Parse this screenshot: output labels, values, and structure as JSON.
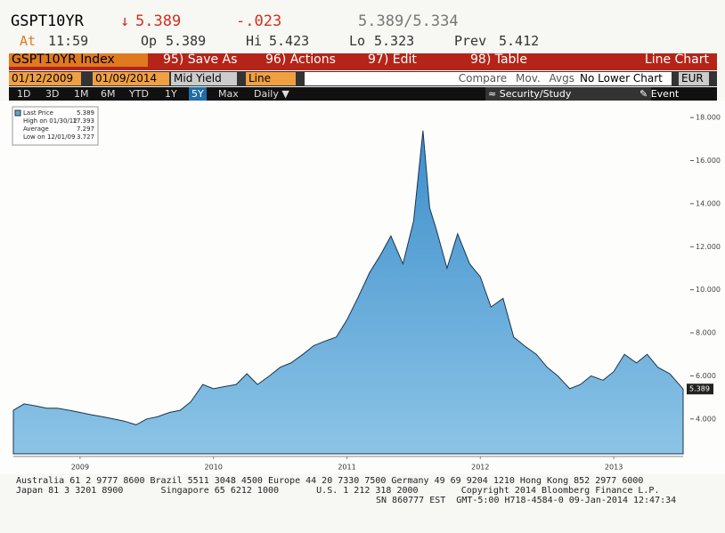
{
  "header": {
    "ticker": "GSPT10YR",
    "change_arrow": "↓",
    "price": "5.389",
    "change": "-.023",
    "bid_ask": "5.389/5.334",
    "time_label": "At",
    "time": "11:59",
    "open_label": "Op",
    "open": "5.389",
    "high_label": "Hi",
    "high": "5.423",
    "low_label": "Lo",
    "low": "5.323",
    "prev_label": "Prev",
    "prev": "5.412"
  },
  "toolbar": {
    "index": "GSPT10YR Index",
    "menus": [
      "95) Save As",
      "96) Actions",
      "97) Edit",
      "98) Table"
    ],
    "mode": "Line Chart"
  },
  "controls": {
    "start": "01/12/2009",
    "end": "01/09/2014",
    "field": "Mid Yield",
    "style": "Line",
    "compare": "Compare",
    "mov_avgs": "Mov. Avgs",
    "lower": "No Lower Chart",
    "currency": "EUR"
  },
  "periods": [
    "1D",
    "3D",
    "1M",
    "6M",
    "YTD",
    "1Y",
    "5Y",
    "Max"
  ],
  "frequency": "Daily ▼",
  "security": "Security/Study",
  "event": "Event",
  "footer": [
    "Australia 61 2 9777 8600 Brazil 5511 3048 4500 Europe 44 20 7330 7500 Germany 49 69 9204 1210 Hong Kong 852 2977 6000",
    "Japan 81 3 3201 8900       Singapore 65 6212 1000       U.S. 1 212 318 2000        Copyright 2014 Bloomberg Finance L.P.",
    "SN 860777 EST  GMT-5:00 H718-4584-0 09-Jan-2014 12:47:34"
  ],
  "chart_data": {
    "type": "area",
    "x": [
      2009.0,
      2009.08,
      2009.17,
      2009.25,
      2009.33,
      2009.42,
      2009.5,
      2009.58,
      2009.67,
      2009.75,
      2009.83,
      2009.92,
      2010.0,
      2010.08,
      2010.17,
      2010.25,
      2010.33,
      2010.42,
      2010.5,
      2010.58,
      2010.67,
      2010.75,
      2010.83,
      2010.92,
      2011.0,
      2011.08,
      2011.17,
      2011.25,
      2011.33,
      2011.42,
      2011.5,
      2011.58,
      2011.67,
      2011.75,
      2011.83,
      2011.92,
      2012.0,
      2012.07,
      2012.12,
      2012.17,
      2012.25,
      2012.33,
      2012.42,
      2012.5,
      2012.58,
      2012.67,
      2012.75,
      2012.83,
      2012.92,
      2013.0,
      2013.08,
      2013.17,
      2013.25,
      2013.33,
      2013.42,
      2013.5,
      2013.58,
      2013.67,
      2013.75,
      2013.83,
      2013.92,
      2014.02
    ],
    "series": [
      {
        "name": "Last Price",
        "color": "#5aa6d6",
        "values": [
          4.4,
          4.7,
          4.6,
          4.5,
          4.5,
          4.4,
          4.3,
          4.2,
          4.1,
          4.0,
          3.9,
          3.727,
          4.0,
          4.1,
          4.3,
          4.4,
          4.8,
          5.6,
          5.4,
          5.5,
          5.6,
          6.1,
          5.6,
          6.0,
          6.4,
          6.6,
          7.0,
          7.4,
          7.6,
          7.8,
          8.6,
          9.6,
          10.8,
          11.6,
          12.5,
          11.2,
          13.2,
          17.393,
          13.8,
          12.8,
          11.0,
          12.6,
          11.2,
          10.6,
          9.2,
          9.6,
          7.8,
          7.4,
          7.0,
          6.4,
          6.0,
          5.4,
          5.6,
          6.0,
          5.8,
          6.2,
          7.0,
          6.6,
          7.0,
          6.4,
          6.1,
          5.389
        ]
      }
    ],
    "stats": [
      {
        "label": "High on 01/30/12",
        "value": 17.393
      },
      {
        "label": "Average",
        "value": 7.297
      },
      {
        "label": "Low on 12/01/09",
        "value": 3.727
      }
    ],
    "xlim": [
      2009.0,
      2014.02
    ],
    "xticks": [
      {
        "value": 2009.5,
        "label": "2009"
      },
      {
        "value": 2010.5,
        "label": "2010"
      },
      {
        "value": 2011.5,
        "label": "2011"
      },
      {
        "value": 2012.5,
        "label": "2012"
      },
      {
        "value": 2013.5,
        "label": "2013"
      }
    ],
    "ylim": [
      2.38,
      18.5
    ],
    "yticks": [
      {
        "value": 4,
        "label": "4.000"
      },
      {
        "value": 6,
        "label": "6.000"
      },
      {
        "value": 8,
        "label": "8.000"
      },
      {
        "value": 10,
        "label": "10.000"
      },
      {
        "value": 12,
        "label": "12.000"
      },
      {
        "value": 14,
        "label": "14.000"
      },
      {
        "value": 16,
        "label": "16.000"
      },
      {
        "value": 18,
        "label": "18.000"
      }
    ]
  }
}
